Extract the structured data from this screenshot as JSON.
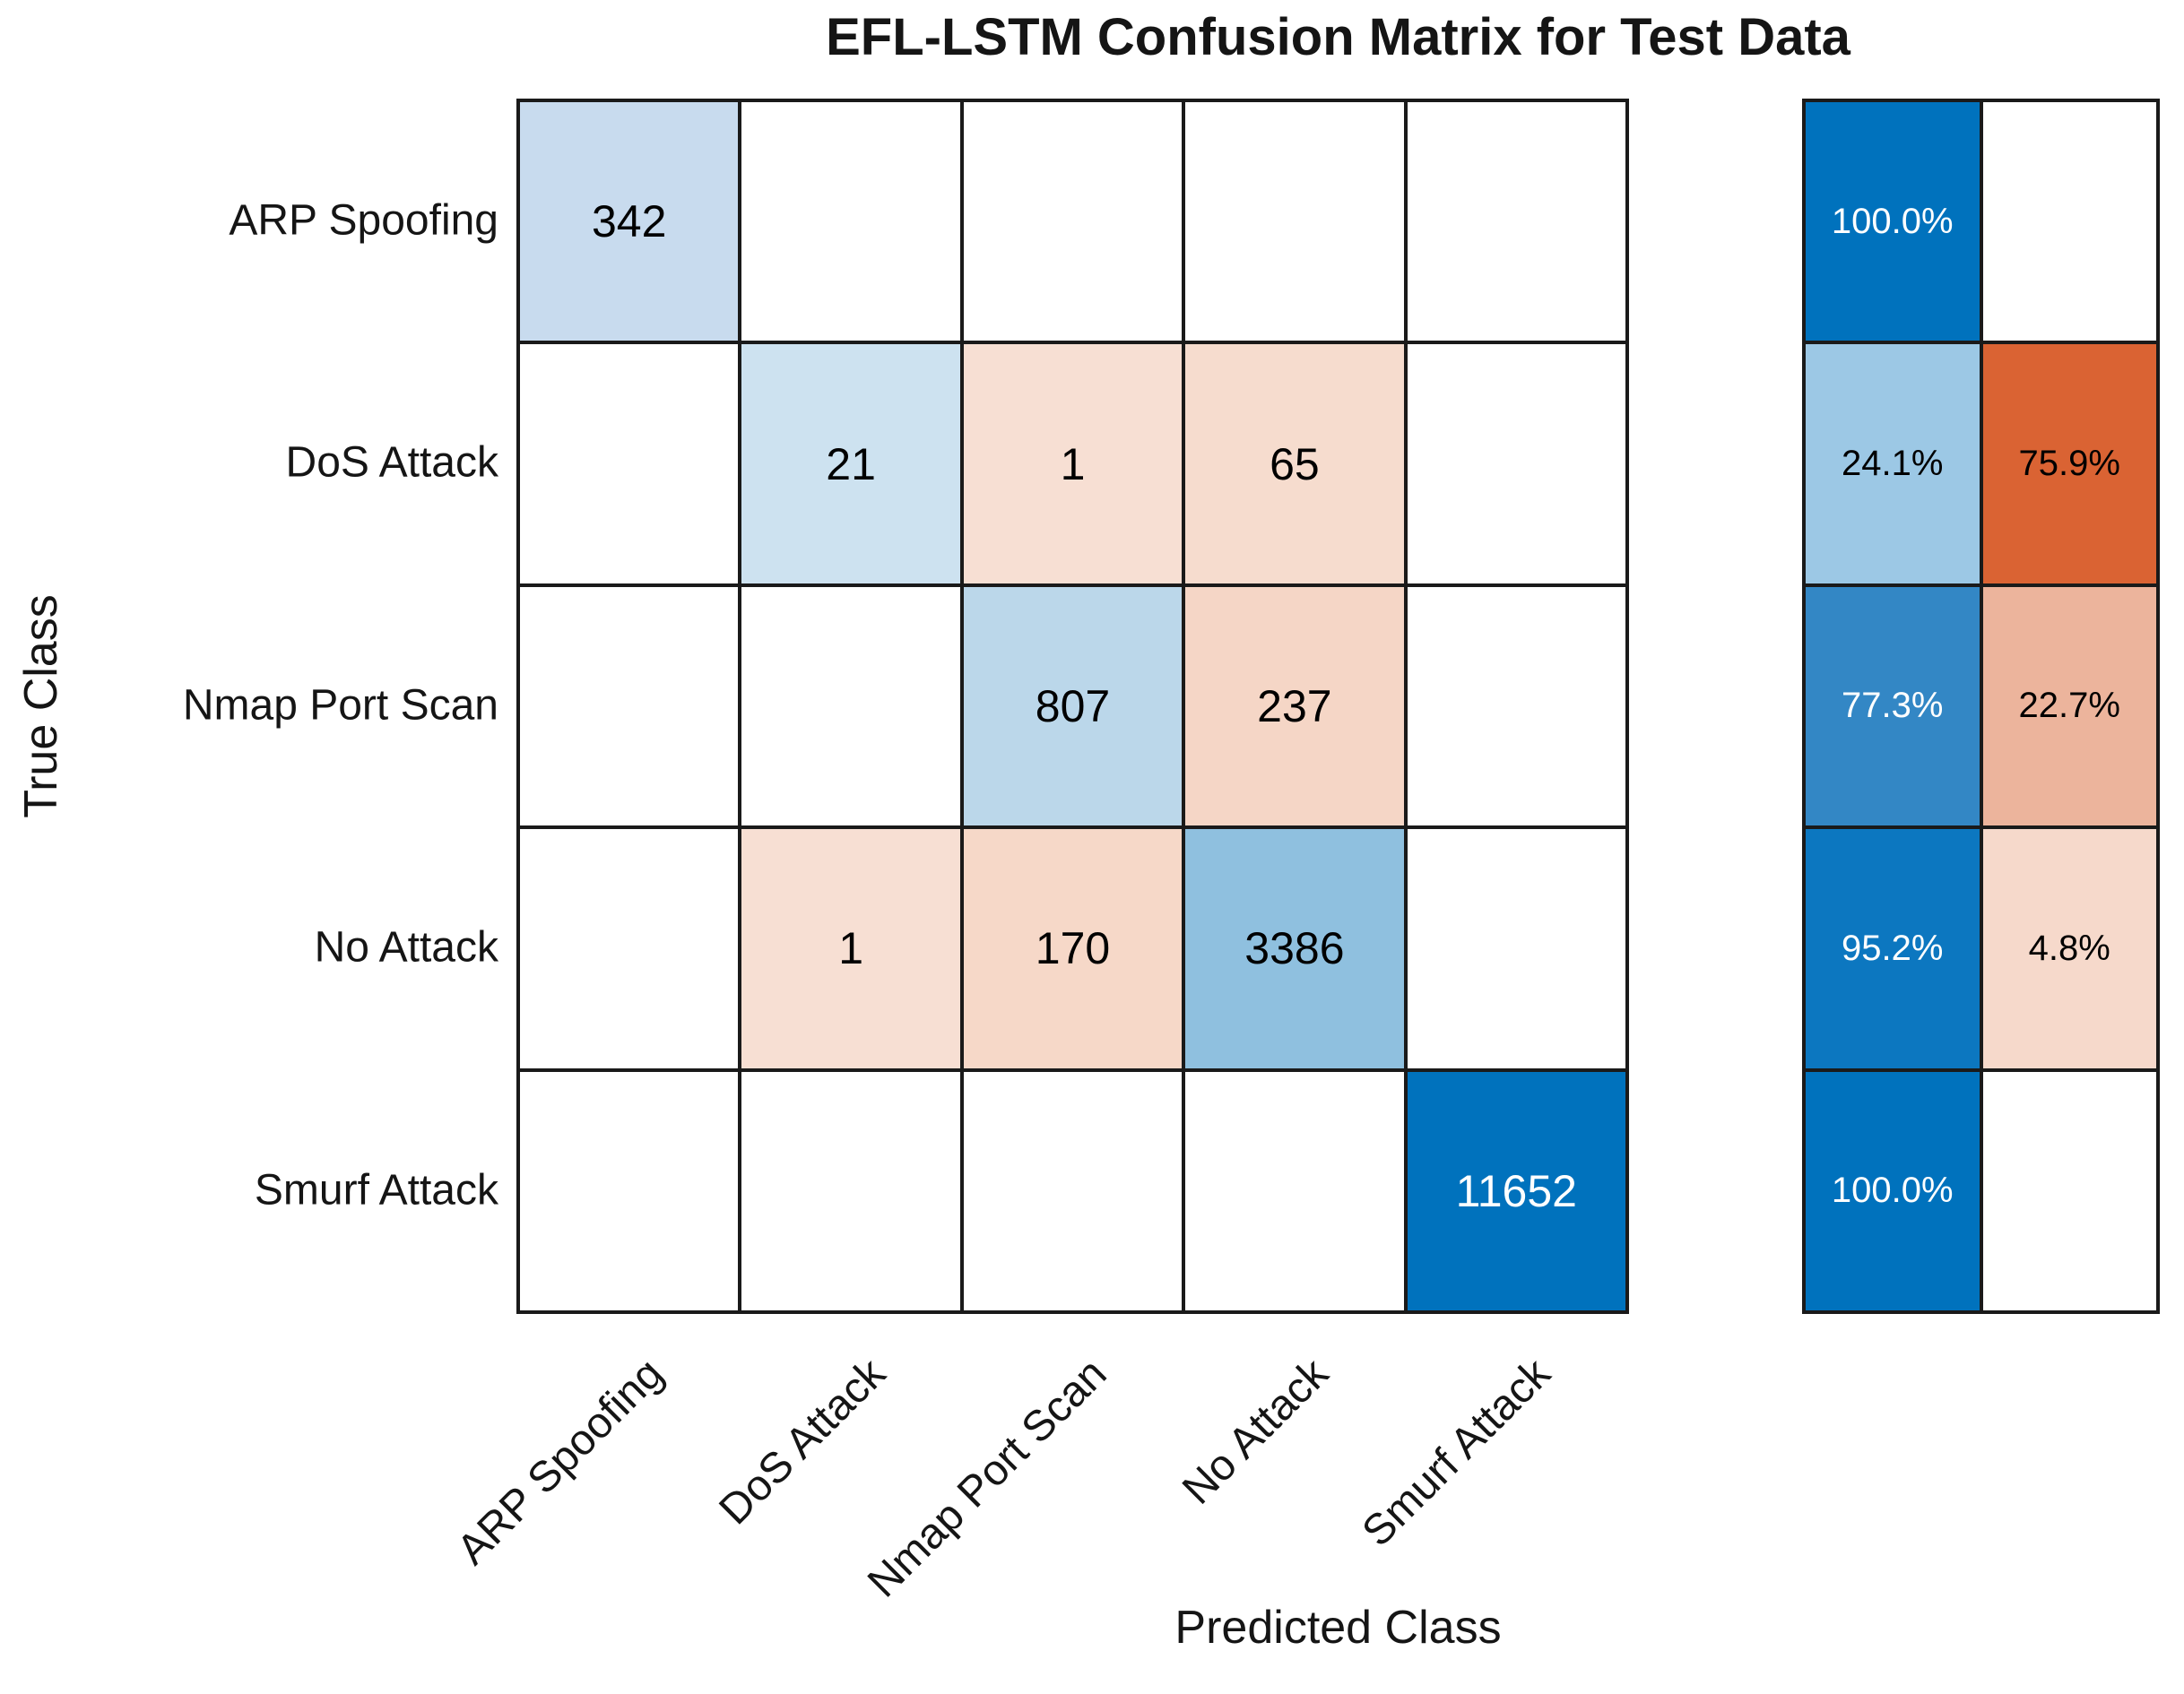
{
  "chart_data": {
    "type": "heatmap",
    "title": "EFL-LSTM Confusion Matrix for Test Data",
    "xlabel": "Predicted Class",
    "ylabel": "True Class",
    "x_categories": [
      "ARP Spoofing",
      "DoS Attack",
      "Nmap Port Scan",
      "No Attack",
      "Smurf Attack"
    ],
    "y_categories": [
      "ARP Spoofing",
      "DoS Attack",
      "Nmap Port Scan",
      "No Attack",
      "Smurf Attack"
    ],
    "matrix": [
      [
        342,
        null,
        null,
        null,
        null
      ],
      [
        null,
        21,
        1,
        65,
        null
      ],
      [
        null,
        null,
        807,
        237,
        null
      ],
      [
        null,
        1,
        170,
        3386,
        null
      ],
      [
        null,
        null,
        null,
        null,
        11652
      ]
    ],
    "cell_fills": [
      [
        "#C8DBEE",
        "#FFFFFF",
        "#FFFFFF",
        "#FFFFFF",
        "#FFFFFF"
      ],
      [
        "#FFFFFF",
        "#CDE2F0",
        "#F7DFD3",
        "#F6DCCE",
        "#FFFFFF"
      ],
      [
        "#FFFFFF",
        "#FFFFFF",
        "#BBD7EA",
        "#F5D6C6",
        "#FFFFFF"
      ],
      [
        "#FFFFFF",
        "#F7DFD3",
        "#F6D8C8",
        "#8FC0DF",
        "#FFFFFF"
      ],
      [
        "#FFFFFF",
        "#FFFFFF",
        "#FFFFFF",
        "#FFFFFF",
        "#0072BD"
      ]
    ],
    "cell_text_colors": [
      [
        "#000000",
        "#000000",
        "#000000",
        "#000000",
        "#000000"
      ],
      [
        "#000000",
        "#000000",
        "#000000",
        "#000000",
        "#000000"
      ],
      [
        "#000000",
        "#000000",
        "#000000",
        "#000000",
        "#000000"
      ],
      [
        "#000000",
        "#000000",
        "#000000",
        "#000000",
        "#000000"
      ],
      [
        "#000000",
        "#000000",
        "#000000",
        "#000000",
        "#FFFFFF"
      ]
    ],
    "row_summary": [
      {
        "correct": "100.0%",
        "incorrect": "",
        "correct_fill": "#0072BD",
        "correct_text": "#FFFFFF",
        "incorrect_fill": "#FFFFFF",
        "incorrect_text": "#000000"
      },
      {
        "correct": "24.1%",
        "incorrect": "75.9%",
        "correct_fill": "#9CC8E5",
        "correct_text": "#000000",
        "incorrect_fill": "#DA6333",
        "incorrect_text": "#000000"
      },
      {
        "correct": "77.3%",
        "incorrect": "22.7%",
        "correct_fill": "#3387C5",
        "correct_text": "#FFFFFF",
        "incorrect_fill": "#ECB49C",
        "incorrect_text": "#000000"
      },
      {
        "correct": "95.2%",
        "incorrect": "4.8%",
        "correct_fill": "#0C77C0",
        "correct_text": "#FFFFFF",
        "incorrect_fill": "#F6D9CB",
        "incorrect_text": "#000000"
      },
      {
        "correct": "100.0%",
        "incorrect": "",
        "correct_fill": "#0072BD",
        "correct_text": "#FFFFFF",
        "incorrect_fill": "#FFFFFF",
        "incorrect_text": "#000000"
      }
    ],
    "legend_position": "none",
    "grid_on": true
  },
  "palette": {
    "grid_line": "#1a1a1a",
    "diagonal_max_blue": "#0072BD",
    "off_diagonal_max_orange": "#DA6333",
    "background": "#FFFFFF"
  }
}
